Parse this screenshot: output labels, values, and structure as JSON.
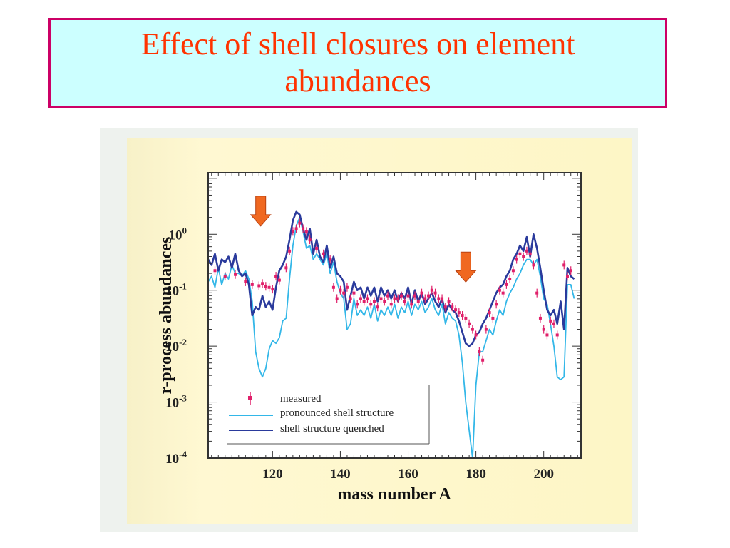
{
  "slide": {
    "title": "Effect of shell closures on element abundances"
  },
  "chart_data": {
    "type": "line",
    "xlabel": "mass number A",
    "ylabel": "r-process abundances",
    "xlim": [
      101,
      211
    ],
    "ylim_log10": [
      -4,
      1.1
    ],
    "y_scale": "log",
    "x_ticks": [
      120,
      140,
      160,
      180,
      200
    ],
    "x_tick_labels": [
      "120",
      "140",
      "160",
      "180",
      "200"
    ],
    "y_ticks_log10": [
      0,
      -1,
      -2,
      -3,
      -4
    ],
    "y_tick_labels": [
      {
        "base": "10",
        "exp": "0"
      },
      {
        "base": "10",
        "exp": "-1"
      },
      {
        "base": "10",
        "exp": "-2"
      },
      {
        "base": "10",
        "exp": "-3"
      },
      {
        "base": "10",
        "exp": "-4"
      }
    ],
    "legend_position": "bottom-center",
    "annotations": [
      {
        "type": "arrow-down",
        "x": 116.5,
        "y_log10": 0.35,
        "color": "#f06820"
      },
      {
        "type": "arrow-down",
        "x": 177,
        "y_log10": -0.65,
        "color": "#f06820"
      }
    ],
    "series": [
      {
        "name": "measured",
        "style": "errorbar-points",
        "color": "#e0206a",
        "x": [
          103,
          106,
          109,
          112,
          114,
          116,
          117,
          118,
          119,
          120,
          121,
          122,
          124,
          125,
          126,
          127,
          128,
          129,
          130,
          131,
          133,
          135,
          137,
          138,
          139,
          140,
          141,
          142,
          143,
          144,
          145,
          146,
          147,
          148,
          149,
          150,
          151,
          152,
          153,
          154,
          155,
          156,
          157,
          158,
          159,
          160,
          161,
          162,
          163,
          164,
          165,
          166,
          167,
          168,
          169,
          170,
          171,
          172,
          173,
          174,
          175,
          176,
          177,
          178,
          179,
          180,
          181,
          182,
          183,
          184,
          185,
          186,
          187,
          188,
          189,
          190,
          191,
          192,
          193,
          194,
          195,
          196,
          197,
          198,
          199,
          200,
          201,
          202,
          203,
          204,
          206,
          207,
          208
        ],
        "y_log10": [
          -0.65,
          -0.75,
          -0.72,
          -0.85,
          -0.9,
          -0.92,
          -0.88,
          -0.93,
          -0.95,
          -0.98,
          -0.75,
          -0.82,
          -0.6,
          -0.3,
          0.05,
          0.1,
          0.2,
          0.1,
          0.05,
          -0.1,
          -0.25,
          -0.35,
          -0.45,
          -0.95,
          -1.15,
          -1.0,
          -1.05,
          -0.95,
          -1.15,
          -1.05,
          -1.25,
          -1.15,
          -1.2,
          -1.15,
          -1.25,
          -1.2,
          -1.3,
          -1.15,
          -1.2,
          -1.1,
          -1.25,
          -1.15,
          -1.15,
          -1.1,
          -1.2,
          -1.1,
          -1.25,
          -1.1,
          -1.2,
          -1.05,
          -1.15,
          -1.1,
          -1.0,
          -1.05,
          -1.15,
          -1.15,
          -1.3,
          -1.2,
          -1.3,
          -1.35,
          -1.4,
          -1.45,
          -1.5,
          -1.6,
          -1.7,
          -1.8,
          -2.1,
          -2.25,
          -1.7,
          -1.4,
          -1.5,
          -1.25,
          -1.0,
          -1.05,
          -0.9,
          -0.8,
          -0.65,
          -0.45,
          -0.35,
          -0.4,
          -0.3,
          -0.35,
          -0.55,
          -1.05,
          -1.5,
          -1.7,
          -1.8,
          -1.55,
          -1.6,
          -1.8,
          -0.55,
          -0.75,
          -0.65
        ]
      },
      {
        "name": "pronounced shell structure",
        "style": "line",
        "color": "#33b7e8",
        "x": [
          101,
          102,
          103,
          104,
          105,
          106,
          107,
          108,
          109,
          110,
          111,
          112,
          113,
          114,
          115,
          116,
          117,
          118,
          119,
          120,
          121,
          122,
          123,
          124,
          125,
          126,
          127,
          128,
          129,
          130,
          131,
          132,
          133,
          134,
          135,
          136,
          137,
          138,
          139,
          140,
          141,
          142,
          143,
          144,
          145,
          146,
          147,
          148,
          149,
          150,
          151,
          152,
          153,
          154,
          155,
          156,
          157,
          158,
          159,
          160,
          161,
          162,
          163,
          164,
          165,
          166,
          167,
          168,
          169,
          170,
          171,
          172,
          173,
          174,
          175,
          176,
          177,
          178,
          179,
          180,
          181,
          182,
          183,
          184,
          185,
          186,
          187,
          188,
          189,
          190,
          191,
          192,
          193,
          194,
          195,
          196,
          197,
          198,
          199,
          200,
          201,
          202,
          203,
          204,
          205,
          206,
          207,
          208,
          209
        ],
        "y_log10": [
          -0.85,
          -0.75,
          -0.95,
          -0.6,
          -0.9,
          -0.7,
          -0.8,
          -0.55,
          -0.7,
          -0.7,
          -0.75,
          -0.65,
          -0.8,
          -1.2,
          -2.1,
          -2.4,
          -2.55,
          -2.4,
          -2.05,
          -1.9,
          -1.95,
          -1.85,
          -1.55,
          -1.5,
          -0.8,
          -0.2,
          0.15,
          0.3,
          0.05,
          -0.25,
          -0.2,
          -0.45,
          -0.35,
          -0.45,
          -0.55,
          -0.35,
          -0.7,
          -0.5,
          -0.85,
          -1.05,
          -1.15,
          -1.7,
          -1.6,
          -1.15,
          -1.45,
          -1.35,
          -1.45,
          -1.3,
          -1.5,
          -1.25,
          -1.55,
          -1.35,
          -1.45,
          -1.3,
          -1.45,
          -1.25,
          -1.5,
          -1.3,
          -1.4,
          -1.2,
          -1.45,
          -1.25,
          -1.35,
          -1.2,
          -1.4,
          -1.3,
          -1.15,
          -1.35,
          -1.45,
          -1.25,
          -1.6,
          -1.4,
          -1.5,
          -1.55,
          -1.8,
          -2.3,
          -3.0,
          -3.5,
          -4.0,
          -2.7,
          -2.1,
          -2.1,
          -1.9,
          -1.7,
          -1.8,
          -1.55,
          -1.35,
          -1.45,
          -1.2,
          -1.05,
          -0.95,
          -0.8,
          -0.7,
          -0.55,
          -0.45,
          -0.45,
          -0.55,
          -0.45,
          -0.75,
          -1.15,
          -1.25,
          -1.6,
          -2.0,
          -2.55,
          -2.6,
          -2.55,
          -0.9,
          -0.9,
          -1.15
        ]
      },
      {
        "name": "shell structure quenched",
        "style": "line",
        "color": "#2a3a9c",
        "x": [
          101,
          102,
          103,
          104,
          105,
          106,
          107,
          108,
          109,
          110,
          111,
          112,
          113,
          114,
          115,
          116,
          117,
          118,
          119,
          120,
          121,
          122,
          123,
          124,
          125,
          126,
          127,
          128,
          129,
          130,
          131,
          132,
          133,
          134,
          135,
          136,
          137,
          138,
          139,
          140,
          141,
          142,
          143,
          144,
          145,
          146,
          147,
          148,
          149,
          150,
          151,
          152,
          153,
          154,
          155,
          156,
          157,
          158,
          159,
          160,
          161,
          162,
          163,
          164,
          165,
          166,
          167,
          168,
          169,
          170,
          171,
          172,
          173,
          174,
          175,
          176,
          177,
          178,
          179,
          180,
          181,
          182,
          183,
          184,
          185,
          186,
          187,
          188,
          189,
          190,
          191,
          192,
          193,
          194,
          195,
          196,
          197,
          198,
          199,
          200,
          201,
          202,
          203,
          204,
          205,
          206,
          207,
          208,
          209
        ],
        "y_log10": [
          -0.45,
          -0.55,
          -0.35,
          -0.65,
          -0.45,
          -0.5,
          -0.4,
          -0.6,
          -0.35,
          -0.65,
          -0.75,
          -0.7,
          -0.9,
          -1.45,
          -1.3,
          -1.35,
          -1.1,
          -1.3,
          -1.2,
          -1.35,
          -0.95,
          -0.65,
          -0.55,
          -0.4,
          -0.1,
          0.25,
          0.4,
          0.35,
          0.1,
          -0.1,
          0.1,
          -0.35,
          -0.1,
          -0.4,
          -0.5,
          -0.2,
          -0.6,
          -0.4,
          -0.7,
          -0.75,
          -0.85,
          -1.35,
          -1.1,
          -0.85,
          -1.0,
          -0.95,
          -1.15,
          -0.95,
          -1.1,
          -0.95,
          -1.2,
          -0.95,
          -1.1,
          -1.0,
          -1.15,
          -1.0,
          -1.2,
          -1.05,
          -1.15,
          -0.95,
          -1.25,
          -1.0,
          -1.2,
          -1.05,
          -1.25,
          -1.15,
          -1.05,
          -1.2,
          -1.3,
          -1.15,
          -1.4,
          -1.25,
          -1.35,
          -1.4,
          -1.55,
          -1.75,
          -1.95,
          -2.0,
          -1.95,
          -1.8,
          -1.75,
          -1.6,
          -1.5,
          -1.35,
          -1.2,
          -1.05,
          -0.95,
          -0.9,
          -0.75,
          -0.65,
          -0.45,
          -0.35,
          -0.2,
          -0.3,
          -0.05,
          -0.4,
          0.0,
          -0.25,
          -0.6,
          -1.0,
          -1.35,
          -1.45,
          -1.35,
          -1.6,
          -1.2,
          -1.7,
          -0.6,
          -0.75,
          -0.8
        ]
      }
    ]
  }
}
